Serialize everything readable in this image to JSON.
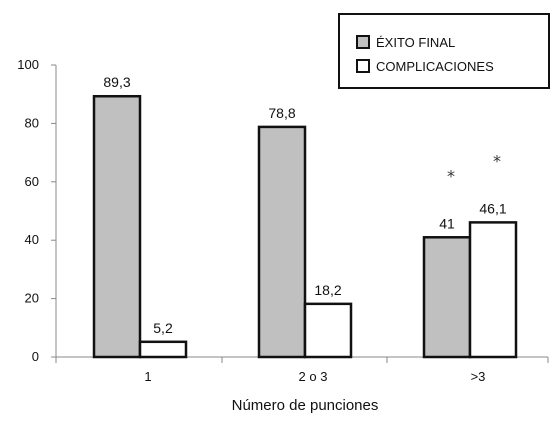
{
  "chart_data": {
    "type": "bar",
    "categories": [
      "1",
      "2 o 3",
      ">3"
    ],
    "series": [
      {
        "name": "ÉXITO FINAL",
        "values": [
          89.3,
          78.8,
          41
        ],
        "labels": [
          "89,3",
          "78,8",
          "41"
        ],
        "color": "#c0c0c0"
      },
      {
        "name": "COMPLICACIONES",
        "values": [
          5.2,
          18.2,
          46.1
        ],
        "labels": [
          "5,2",
          "18,2",
          "46,1"
        ],
        "color": "#ffffff"
      }
    ],
    "xlabel": "Número de punciones",
    "ylabel": "",
    "ylim": [
      0,
      100
    ],
    "yticks": [
      0,
      20,
      40,
      60,
      80,
      100
    ],
    "grid": false,
    "legend": "top-right",
    "annotations": [
      {
        "text": "*",
        "category": ">3",
        "series": 0
      },
      {
        "text": "*",
        "category": ">3",
        "series": 1
      }
    ]
  }
}
